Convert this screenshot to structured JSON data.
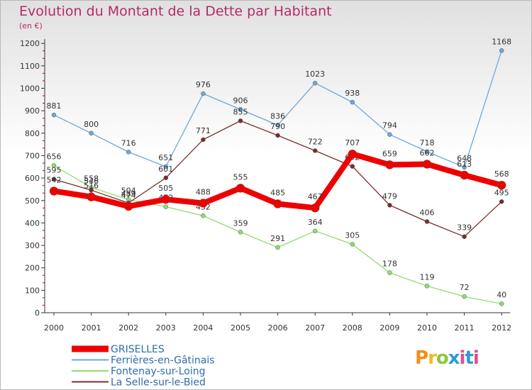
{
  "title": "Evolution du Montant de la Dette par Habitant",
  "subtitle": "(en €)",
  "logo": "Proxiti",
  "chart_data": {
    "type": "line",
    "title": "Evolution du Montant de la Dette par Habitant",
    "ylabel": "(en €)",
    "xlabel": "",
    "x": [
      "2000",
      "2001",
      "2002",
      "2003",
      "2004",
      "2005",
      "2006",
      "2007",
      "2008",
      "2009",
      "2010",
      "2011",
      "2012"
    ],
    "ylim": [
      0,
      1200
    ],
    "yticks": [
      0,
      100,
      200,
      300,
      400,
      500,
      600,
      700,
      800,
      900,
      1000,
      1100,
      1200
    ],
    "grid": false,
    "legend_position": "bottom-left",
    "series": [
      {
        "name": "GRISELLES",
        "color": "#ee0000",
        "values": [
          542,
          516,
          474,
          505,
          488,
          555,
          485,
          467,
          707,
          659,
          662,
          613,
          568
        ]
      },
      {
        "name": "Ferrières-en-Gâtinais",
        "color": "#6fa7d8",
        "values": [
          881,
          800,
          716,
          651,
          976,
          906,
          836,
          1023,
          938,
          794,
          718,
          648,
          1168
        ]
      },
      {
        "name": "Fontenay-sur-Loing",
        "color": "#90dd70",
        "values": [
          656,
          558,
          504,
          472,
          432,
          359,
          291,
          364,
          305,
          178,
          119,
          72,
          40
        ]
      },
      {
        "name": "La Selle-sur-le-Bied",
        "color": "#7a2c2c",
        "values": [
          595,
          546,
          489,
          601,
          771,
          855,
          790,
          722,
          652,
          479,
          406,
          339,
          495
        ]
      }
    ]
  }
}
